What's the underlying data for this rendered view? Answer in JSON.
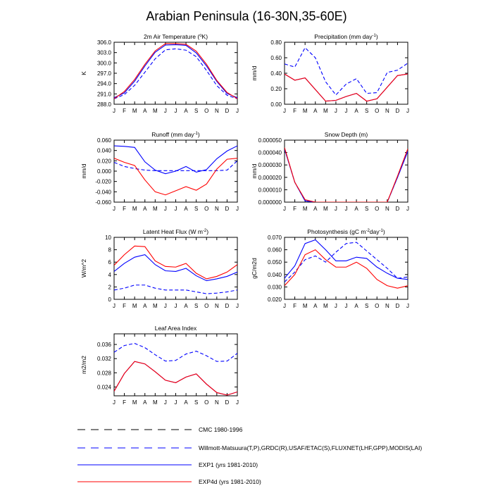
{
  "title": "Arabian Peninsula (16-30N,35-60E)",
  "months": [
    "J",
    "F",
    "M",
    "A",
    "M",
    "J",
    "J",
    "A",
    "S",
    "O",
    "N",
    "D",
    "J"
  ],
  "colors": {
    "cmc": "#000000",
    "obs": "#0000ff",
    "exp1": "#0000ff",
    "exp4d": "#ff0000"
  },
  "legend": [
    {
      "key": "cmc",
      "label": "CMC 1980-1996",
      "color": "#000000",
      "dash": true
    },
    {
      "key": "obs",
      "label": "Willmott-Matsuura(T,P),GRDC(R),USAF/ETAC(S),FLUXNET(LHF,GPP),MODIS(LAI)",
      "color": "#0000ff",
      "dash": true
    },
    {
      "key": "exp1",
      "label": "EXP1 (yrs 1981-2010)",
      "color": "#0000ff",
      "dash": false
    },
    {
      "key": "exp4d",
      "label": "EXP4d (yrs 1981-2010)",
      "color": "#ff0000",
      "dash": false
    }
  ],
  "chart_data": [
    {
      "id": "temp",
      "type": "line",
      "title_pre": "2m Air Temperature (",
      "title_sup": "o",
      "title_post": "K)",
      "ylabel": "K",
      "ylim": [
        288.0,
        306.0
      ],
      "yticks": [
        "288.0",
        "291.0",
        "294.0",
        "297.0",
        "300.0",
        "303.0",
        "306.0"
      ],
      "series": [
        {
          "name": "Willmott-Matsuura",
          "color": "#0000ff",
          "dash": true,
          "values": [
            289.6,
            290.8,
            293.5,
            297.3,
            301.2,
            303.8,
            304.1,
            303.7,
            301.8,
            297.8,
            293.4,
            290.6,
            289.6
          ]
        },
        {
          "name": "EXP1",
          "color": "#0000ff",
          "dash": false,
          "values": [
            289.9,
            291.3,
            294.7,
            299.1,
            303.1,
            305.2,
            305.3,
            305.1,
            302.9,
            299.1,
            294.6,
            291.1,
            289.9
          ]
        },
        {
          "name": "EXP4d",
          "color": "#ff0000",
          "dash": false,
          "values": [
            289.6,
            291.7,
            295.2,
            299.6,
            303.5,
            305.6,
            305.6,
            305.4,
            303.4,
            299.6,
            294.9,
            291.4,
            289.6
          ]
        }
      ]
    },
    {
      "id": "precip",
      "type": "line",
      "title_pre": "Precipitation (mm day",
      "title_sup": "-1",
      "title_post": ")",
      "ylabel": "mm/d",
      "ylim": [
        0.0,
        0.8
      ],
      "yticks": [
        "0.00",
        "0.20",
        "0.40",
        "0.60",
        "0.80"
      ],
      "series": [
        {
          "name": "Willmott-Matsuura",
          "color": "#0000ff",
          "dash": true,
          "values": [
            0.52,
            0.48,
            0.73,
            0.6,
            0.29,
            0.12,
            0.26,
            0.33,
            0.14,
            0.15,
            0.41,
            0.44,
            0.53
          ]
        },
        {
          "name": "EXP1",
          "color": "#0000ff",
          "dash": false,
          "values": [
            0.39,
            0.31,
            0.34,
            0.19,
            0.04,
            0.05,
            0.1,
            0.14,
            0.04,
            0.07,
            0.22,
            0.37,
            0.39
          ]
        },
        {
          "name": "EXP4d",
          "color": "#ff0000",
          "dash": false,
          "values": [
            0.39,
            0.31,
            0.34,
            0.19,
            0.04,
            0.05,
            0.1,
            0.14,
            0.04,
            0.07,
            0.22,
            0.37,
            0.39
          ]
        }
      ]
    },
    {
      "id": "runoff",
      "type": "line",
      "title_pre": "Runoff (mm day",
      "title_sup": "-1",
      "title_post": ")",
      "ylabel": "mm/d",
      "ylim": [
        -0.06,
        0.06
      ],
      "yticks": [
        "-0.060",
        "-0.040",
        "-0.020",
        "0.000",
        "0.020",
        "0.040",
        "0.060"
      ],
      "series": [
        {
          "name": "GRDC",
          "color": "#0000ff",
          "dash": true,
          "values": [
            0.017,
            0.009,
            0.005,
            0.002,
            0.001,
            0.001,
            0.001,
            0.001,
            0.001,
            0.001,
            0.001,
            0.002,
            0.02
          ]
        },
        {
          "name": "EXP1",
          "color": "#0000ff",
          "dash": false,
          "values": [
            0.049,
            0.048,
            0.046,
            0.018,
            0.002,
            -0.005,
            0.0,
            0.009,
            -0.002,
            0.003,
            0.024,
            0.039,
            0.049
          ]
        },
        {
          "name": "EXP4d",
          "color": "#ff0000",
          "dash": false,
          "values": [
            0.025,
            0.017,
            0.011,
            -0.017,
            -0.04,
            -0.046,
            -0.038,
            -0.03,
            -0.037,
            -0.025,
            0.004,
            0.023,
            0.025
          ]
        }
      ]
    },
    {
      "id": "snow",
      "type": "line",
      "title_pre": "Snow Depth (m)",
      "title_sup": "",
      "title_post": "",
      "ylabel": "mm/d",
      "ylim": [
        0.0,
        5e-05
      ],
      "yticks": [
        "0.000000",
        "0.000010",
        "0.000020",
        "0.000030",
        "0.000040",
        "0.000050"
      ],
      "series": [
        {
          "name": "USAF/ETAC",
          "color": "#0000ff",
          "dash": true,
          "values": [
            4.3e-05,
            1.6e-05,
            1e-06,
            0.0,
            0.0,
            0.0,
            0.0,
            0.0,
            0.0,
            0.0,
            0.0,
            2e-05,
            4.1e-05
          ]
        },
        {
          "name": "EXP1",
          "color": "#0000ff",
          "dash": false,
          "values": [
            4.3e-05,
            1.6e-05,
            1e-06,
            0.0,
            0.0,
            0.0,
            0.0,
            0.0,
            0.0,
            0.0,
            0.0,
            2e-05,
            4.1e-05
          ]
        },
        {
          "name": "EXP4d",
          "color": "#ff0000",
          "dash": false,
          "values": [
            4.4e-05,
            1.6e-05,
            2e-06,
            0.0,
            0.0,
            0.0,
            0.0,
            0.0,
            0.0,
            0.0,
            0.0,
            2.1e-05,
            4.3e-05
          ]
        }
      ]
    },
    {
      "id": "lhf",
      "type": "line",
      "title_pre": "Latent Heat Flux (W m",
      "title_sup": "-2",
      "title_post": ")",
      "ylabel": "W/m^2",
      "ylim": [
        0,
        10
      ],
      "yticks": [
        "0",
        "2",
        "4",
        "6",
        "8",
        "10"
      ],
      "series": [
        {
          "name": "FLUXNET",
          "color": "#0000ff",
          "dash": true,
          "values": [
            1.5,
            1.8,
            2.3,
            2.3,
            1.8,
            1.5,
            1.5,
            1.5,
            1.2,
            0.9,
            1.0,
            1.2,
            1.5
          ]
        },
        {
          "name": "EXP1",
          "color": "#0000ff",
          "dash": false,
          "values": [
            4.5,
            5.8,
            6.8,
            7.2,
            5.6,
            4.6,
            4.5,
            5.0,
            3.8,
            3.0,
            3.3,
            3.7,
            4.4
          ]
        },
        {
          "name": "EXP4d",
          "color": "#ff0000",
          "dash": false,
          "values": [
            5.5,
            7.2,
            8.6,
            8.5,
            6.2,
            5.3,
            5.2,
            5.8,
            4.2,
            3.3,
            3.7,
            4.4,
            5.6
          ]
        }
      ]
    },
    {
      "id": "gpp",
      "type": "line",
      "title_pre": "Photosynthesis (gC m",
      "title_sup": "-2",
      "title_post": "day",
      "title_sup2": "-1",
      "title_post2": ")",
      "ylabel": "gC/m2d",
      "ylim": [
        0.02,
        0.07
      ],
      "yticks": [
        "0.020",
        "0.030",
        "0.040",
        "0.050",
        "0.060",
        "0.070"
      ],
      "series": [
        {
          "name": "FLUXNET",
          "color": "#0000ff",
          "dash": true,
          "values": [
            0.034,
            0.042,
            0.052,
            0.055,
            0.05,
            0.058,
            0.065,
            0.066,
            0.059,
            0.052,
            0.045,
            0.037,
            0.038
          ]
        },
        {
          "name": "EXP1",
          "color": "#0000ff",
          "dash": false,
          "values": [
            0.037,
            0.047,
            0.065,
            0.068,
            0.06,
            0.051,
            0.051,
            0.054,
            0.053,
            0.046,
            0.041,
            0.037,
            0.036
          ]
        },
        {
          "name": "EXP4d",
          "color": "#ff0000",
          "dash": false,
          "values": [
            0.031,
            0.04,
            0.056,
            0.06,
            0.052,
            0.046,
            0.046,
            0.05,
            0.045,
            0.036,
            0.031,
            0.029,
            0.031
          ]
        }
      ]
    },
    {
      "id": "lai",
      "type": "line",
      "title_pre": "Leaf Area Index",
      "title_sup": "",
      "title_post": "",
      "ylabel": "m2/m2",
      "ylim": [
        0.0215,
        0.039
      ],
      "yticks": [
        "0.024",
        "0.028",
        "0.032",
        "0.036"
      ],
      "ytick_values": [
        0.024,
        0.028,
        0.032,
        0.036
      ],
      "series": [
        {
          "name": "MODIS",
          "color": "#0000ff",
          "dash": true,
          "values": [
            0.0338,
            0.0357,
            0.0363,
            0.0351,
            0.0331,
            0.0313,
            0.0315,
            0.0333,
            0.0341,
            0.0328,
            0.0312,
            0.0313,
            0.0335
          ]
        },
        {
          "name": "EXP1",
          "color": "#0000ff",
          "dash": false,
          "values": [
            0.0228,
            0.0278,
            0.0312,
            0.0305,
            0.0283,
            0.0259,
            0.0252,
            0.0268,
            0.0277,
            0.0248,
            0.0224,
            0.0217,
            0.0226
          ]
        },
        {
          "name": "EXP4d",
          "color": "#ff0000",
          "dash": false,
          "values": [
            0.0228,
            0.0278,
            0.0312,
            0.0305,
            0.0283,
            0.0259,
            0.0252,
            0.0268,
            0.0277,
            0.0248,
            0.0224,
            0.0217,
            0.0226
          ]
        }
      ]
    }
  ]
}
